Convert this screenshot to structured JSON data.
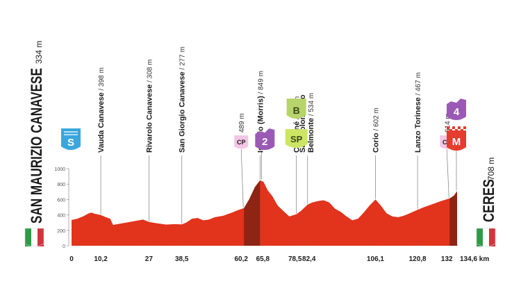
{
  "start": {
    "name": "SAN MAURIZIO CANAVESE",
    "altitude": "334 m",
    "marker": "S",
    "marker_color": "#3aa6dd"
  },
  "finish": {
    "name": "CERES",
    "altitude": "708 m",
    "marker": "M",
    "marker_color": "#e43d2f"
  },
  "flag_colors": [
    "#2e9a47",
    "#ffffff",
    "#d3343b"
  ],
  "profile_colors": {
    "fill": "#e2331c",
    "climb_fill": "#8e2414",
    "connector": "#7a7a7a"
  },
  "badges": [
    {
      "km": 60.2,
      "label": "CP",
      "text": "489 m",
      "type": "cp"
    },
    {
      "km": 65.8,
      "label": "2",
      "type": "gpm"
    },
    {
      "km": 78.5,
      "label": "B",
      "type": "bonus"
    },
    {
      "km": 78.5,
      "label": "SP",
      "type": "sprint"
    },
    {
      "km": 132,
      "label": "CP",
      "text": "614 m",
      "type": "cp"
    },
    {
      "km": 134.6,
      "label": "4",
      "type": "gpm"
    },
    {
      "km": 134.6,
      "label": "M",
      "type": "finish"
    }
  ],
  "badge_colors": {
    "cp": "#f2c6e4",
    "gpm": "#9b59b6",
    "bonus": "#b7d36b",
    "sprint": "#cde565",
    "finish": "#e43d2f"
  },
  "chart_data": {
    "type": "area",
    "x_unit": "km",
    "y_unit": "m",
    "ylim": [
      0,
      1000
    ],
    "y_ticks": [
      0,
      200,
      400,
      600,
      800,
      1000
    ],
    "x_ticks": [
      "0",
      "10,2",
      "27",
      "38,5",
      "60,2",
      "65,8",
      "78,5",
      "82,4",
      "106,1",
      "120,8",
      "132",
      "134,6 km"
    ],
    "x_tick_values": [
      0,
      10.2,
      27,
      38.5,
      60.2,
      65.8,
      78.5,
      82.4,
      106.1,
      120.8,
      132,
      134.6
    ],
    "waypoints": [
      {
        "name": "Vauda Canavese",
        "altitude": "398 m",
        "km": 10.2
      },
      {
        "name": "Rivarolo Canavese",
        "altitude": "308 m",
        "km": 27
      },
      {
        "name": "San Giorgio Canavese",
        "altitude": "277 m",
        "km": 38.5
      },
      {
        "name": "Issiglio (Morris)",
        "altitude": "849 m",
        "km": 65.8
      },
      {
        "name": "Cuorgné",
        "altitude": "409 m",
        "km": 78.5
      },
      {
        "name": "San Colombano",
        "name2": "Belmonte",
        "altitude": "534 m",
        "km": 82.4
      },
      {
        "name": "Corio",
        "altitude": "602 m",
        "km": 106.1
      },
      {
        "name": "Lanzo Torinese",
        "altitude": "467 m",
        "km": 120.8
      }
    ],
    "climbs": [
      [
        60.2,
        65.8
      ],
      [
        132,
        134.6
      ]
    ],
    "profile": [
      [
        0,
        334
      ],
      [
        2,
        350
      ],
      [
        4,
        380
      ],
      [
        6,
        420
      ],
      [
        7,
        430
      ],
      [
        8,
        415
      ],
      [
        10.2,
        398
      ],
      [
        12,
        370
      ],
      [
        13.5,
        350
      ],
      [
        14.5,
        270
      ],
      [
        16,
        280
      ],
      [
        19,
        300
      ],
      [
        22,
        320
      ],
      [
        25,
        340
      ],
      [
        27,
        308
      ],
      [
        30,
        290
      ],
      [
        33,
        275
      ],
      [
        36,
        280
      ],
      [
        38.5,
        277
      ],
      [
        40,
        300
      ],
      [
        42,
        350
      ],
      [
        44,
        360
      ],
      [
        46,
        330
      ],
      [
        48,
        340
      ],
      [
        50,
        370
      ],
      [
        53,
        390
      ],
      [
        56,
        430
      ],
      [
        58,
        460
      ],
      [
        60.2,
        489
      ],
      [
        62,
        600
      ],
      [
        64,
        760
      ],
      [
        65.8,
        849
      ],
      [
        67,
        830
      ],
      [
        68.5,
        720
      ],
      [
        70,
        650
      ],
      [
        72,
        520
      ],
      [
        74,
        450
      ],
      [
        76,
        380
      ],
      [
        78.5,
        409
      ],
      [
        80,
        450
      ],
      [
        82.4,
        534
      ],
      [
        84,
        560
      ],
      [
        86,
        580
      ],
      [
        88,
        590
      ],
      [
        90,
        560
      ],
      [
        92,
        480
      ],
      [
        94,
        440
      ],
      [
        96,
        380
      ],
      [
        98,
        330
      ],
      [
        100,
        350
      ],
      [
        102,
        430
      ],
      [
        104,
        520
      ],
      [
        106.1,
        602
      ],
      [
        108,
        520
      ],
      [
        110,
        420
      ],
      [
        112,
        380
      ],
      [
        114,
        370
      ],
      [
        116,
        390
      ],
      [
        118,
        420
      ],
      [
        120.8,
        467
      ],
      [
        123,
        500
      ],
      [
        126,
        540
      ],
      [
        129,
        580
      ],
      [
        132,
        614
      ],
      [
        133.5,
        650
      ],
      [
        134.6,
        708
      ]
    ]
  }
}
